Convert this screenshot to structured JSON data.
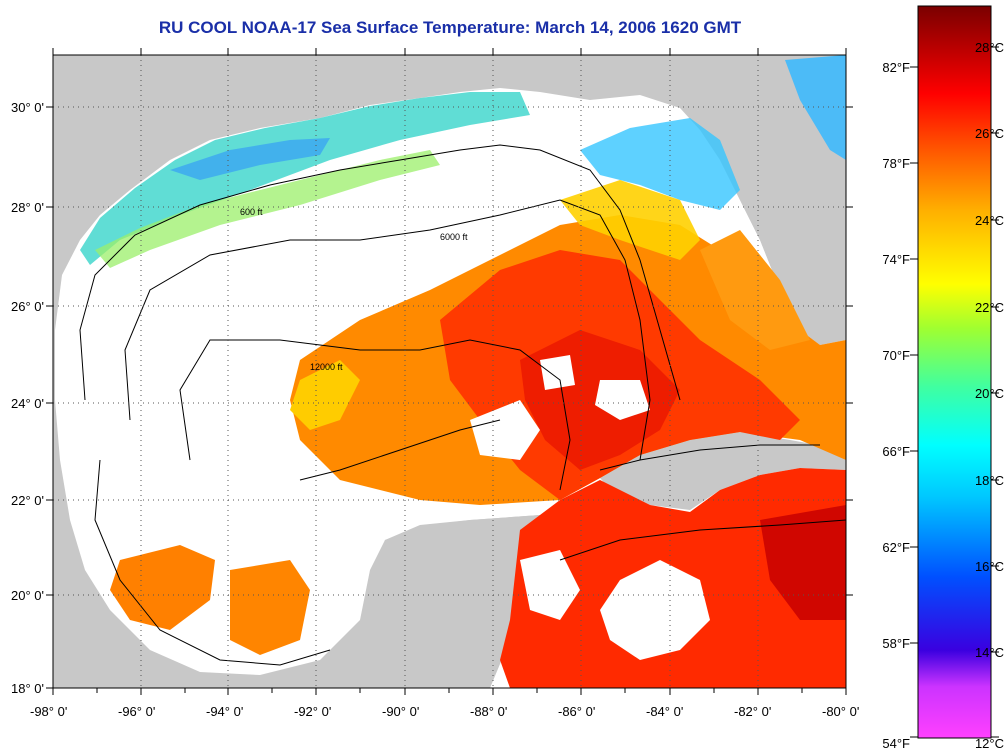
{
  "title": "RU COOL  NOAA-17  Sea Surface Temperature:  March 14, 2006 1620 GMT",
  "axes": {
    "lon_labels": [
      "-98° 0'",
      "-96° 0'",
      "-94° 0'",
      "-92° 0'",
      "-90° 0'",
      "-88° 0'",
      "-86° 0'",
      "-84° 0'",
      "-82° 0'",
      "-80° 0'"
    ],
    "lat_labels": [
      "30° 0'",
      "28° 0'",
      "26° 0'",
      "24° 0'",
      "22° 0'",
      "20° 0'",
      "18° 0'"
    ]
  },
  "colorbar": {
    "fahrenheit": [
      "82°F",
      "78°F",
      "74°F",
      "70°F",
      "66°F",
      "62°F",
      "58°F",
      "54°F"
    ],
    "celsius": [
      "28°C",
      "26°C",
      "24°C",
      "22°C",
      "20°C",
      "18°C",
      "16°C",
      "14°C",
      "12°C"
    ]
  },
  "contour_labels": [
    "600 ft",
    "6000 ft",
    "12000 ft"
  ],
  "colors": {
    "title": "#1a2fa8",
    "land": "#c8c8c8",
    "cloud": "#ffffff"
  }
}
